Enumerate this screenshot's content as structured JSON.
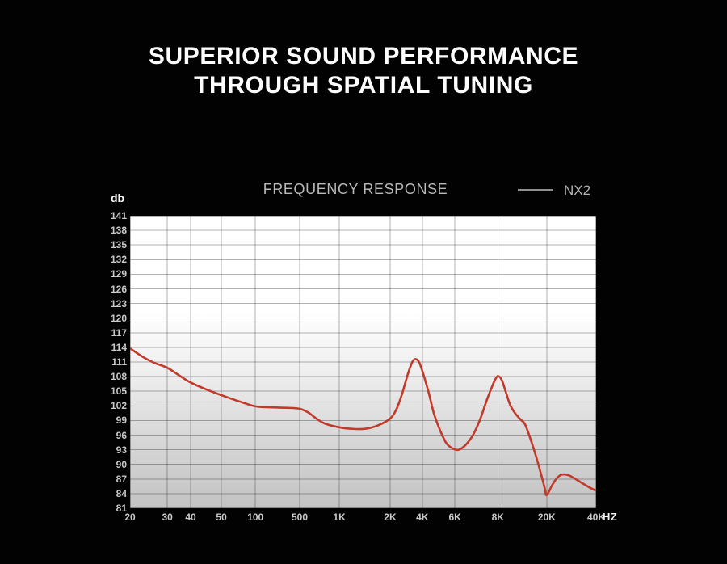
{
  "page": {
    "background": "#020202",
    "title_line1": "SUPERIOR SOUND PERFORMANCE",
    "title_line2": "THROUGH SPATIAL TUNING"
  },
  "chart": {
    "title": "FREQUENCY RESPONSE",
    "y_axis_unit": "db",
    "x_axis_unit": "HZ",
    "legend": {
      "label": "NX2",
      "swatch_color": "#909090"
    },
    "colors": {
      "curve": "#c13a2b",
      "grid": "rgba(0,0,0,0.30)",
      "plot_gradient_top": "#ffffff",
      "plot_gradient_bottom": "#c3c3c3",
      "tick_label": "#c9c9c9"
    }
  },
  "chart_data": {
    "type": "line",
    "title": "FREQUENCY RESPONSE",
    "series_name": "NX2",
    "legend_position": "top-right",
    "grid": true,
    "y_axis": {
      "label": "db",
      "min": 81,
      "max": 141,
      "step": 3,
      "tick_labels": [
        "141",
        "138",
        "135",
        "132",
        "129",
        "126",
        "123",
        "120",
        "117",
        "114",
        "111",
        "108",
        "105",
        "102",
        "99",
        "96",
        "93",
        "90",
        "87",
        "84",
        "81"
      ]
    },
    "x_axis": {
      "label": "HZ",
      "ticks": [
        {
          "label": "20",
          "f": 0.0
        },
        {
          "label": "30",
          "f": 0.08
        },
        {
          "label": "40",
          "f": 0.13
        },
        {
          "label": "50",
          "f": 0.196
        },
        {
          "label": "100",
          "f": 0.269
        },
        {
          "label": "500",
          "f": 0.364
        },
        {
          "label": "1K",
          "f": 0.449
        },
        {
          "label": "2K",
          "f": 0.558
        },
        {
          "label": "4K",
          "f": 0.627
        },
        {
          "label": "6K",
          "f": 0.697
        },
        {
          "label": "8K",
          "f": 0.789
        },
        {
          "label": "20K",
          "f": 0.894
        },
        {
          "label": "40K",
          "f": 1.0
        }
      ]
    },
    "points": [
      {
        "hz": 20,
        "db": 113.8,
        "f": 0.0
      },
      {
        "hz": 23,
        "db": 112.2,
        "f": 0.025
      },
      {
        "hz": 26,
        "db": 110.9,
        "f": 0.05
      },
      {
        "hz": 30,
        "db": 109.8,
        "f": 0.08
      },
      {
        "hz": 34,
        "db": 108.2,
        "f": 0.106
      },
      {
        "hz": 40,
        "db": 106.8,
        "f": 0.13
      },
      {
        "hz": 45,
        "db": 105.4,
        "f": 0.163
      },
      {
        "hz": 50,
        "db": 104.2,
        "f": 0.196
      },
      {
        "hz": 70,
        "db": 103.0,
        "f": 0.232
      },
      {
        "hz": 100,
        "db": 101.9,
        "f": 0.269
      },
      {
        "hz": 180,
        "db": 101.7,
        "f": 0.302
      },
      {
        "hz": 320,
        "db": 101.6,
        "f": 0.336
      },
      {
        "hz": 500,
        "db": 101.4,
        "f": 0.364
      },
      {
        "hz": 580,
        "db": 100.6,
        "f": 0.383
      },
      {
        "hz": 680,
        "db": 99.3,
        "f": 0.401
      },
      {
        "hz": 800,
        "db": 98.3,
        "f": 0.42
      },
      {
        "hz": 1000,
        "db": 97.6,
        "f": 0.449
      },
      {
        "hz": 1200,
        "db": 97.3,
        "f": 0.476
      },
      {
        "hz": 1450,
        "db": 97.3,
        "f": 0.504
      },
      {
        "hz": 1700,
        "db": 98.0,
        "f": 0.532
      },
      {
        "hz": 2000,
        "db": 99.4,
        "f": 0.558
      },
      {
        "hz": 2250,
        "db": 101.4,
        "f": 0.572
      },
      {
        "hz": 2500,
        "db": 104.6,
        "f": 0.584
      },
      {
        "hz": 2800,
        "db": 108.2,
        "f": 0.595
      },
      {
        "hz": 3100,
        "db": 110.9,
        "f": 0.605
      },
      {
        "hz": 3300,
        "db": 111.6,
        "f": 0.612
      },
      {
        "hz": 3550,
        "db": 111.0,
        "f": 0.62
      },
      {
        "hz": 4000,
        "db": 108.6,
        "f": 0.629
      },
      {
        "hz": 4300,
        "db": 104.6,
        "f": 0.641
      },
      {
        "hz": 4700,
        "db": 100.4,
        "f": 0.652
      },
      {
        "hz": 5100,
        "db": 96.8,
        "f": 0.666
      },
      {
        "hz": 5500,
        "db": 94.3,
        "f": 0.679
      },
      {
        "hz": 5900,
        "db": 93.2,
        "f": 0.693
      },
      {
        "hz": 6200,
        "db": 93.0,
        "f": 0.705
      },
      {
        "hz": 6600,
        "db": 93.9,
        "f": 0.719
      },
      {
        "hz": 7000,
        "db": 95.9,
        "f": 0.735
      },
      {
        "hz": 7300,
        "db": 99.2,
        "f": 0.751
      },
      {
        "hz": 7600,
        "db": 102.8,
        "f": 0.764
      },
      {
        "hz": 7800,
        "db": 105.8,
        "f": 0.776
      },
      {
        "hz": 7900,
        "db": 107.5,
        "f": 0.784
      },
      {
        "hz": 8000,
        "db": 108.1,
        "f": 0.79
      },
      {
        "hz": 8600,
        "db": 107.2,
        "f": 0.798
      },
      {
        "hz": 9300,
        "db": 104.6,
        "f": 0.807
      },
      {
        "hz": 10000,
        "db": 102.1,
        "f": 0.816
      },
      {
        "hz": 11000,
        "db": 100.5,
        "f": 0.826
      },
      {
        "hz": 12000,
        "db": 99.2,
        "f": 0.838
      },
      {
        "hz": 13300,
        "db": 98.3,
        "f": 0.847
      },
      {
        "hz": 14700,
        "db": 95.8,
        "f": 0.857
      },
      {
        "hz": 16500,
        "db": 92.3,
        "f": 0.869
      },
      {
        "hz": 18000,
        "db": 88.3,
        "f": 0.881
      },
      {
        "hz": 19300,
        "db": 85.0,
        "f": 0.89
      },
      {
        "hz": 20000,
        "db": 83.7,
        "f": 0.894
      },
      {
        "hz": 22000,
        "db": 85.8,
        "f": 0.906
      },
      {
        "hz": 23500,
        "db": 87.2,
        "f": 0.916
      },
      {
        "hz": 25000,
        "db": 87.9,
        "f": 0.926
      },
      {
        "hz": 27500,
        "db": 87.8,
        "f": 0.94
      },
      {
        "hz": 30000,
        "db": 87.1,
        "f": 0.954
      },
      {
        "hz": 33500,
        "db": 86.1,
        "f": 0.971
      },
      {
        "hz": 37000,
        "db": 85.2,
        "f": 0.987
      },
      {
        "hz": 40000,
        "db": 84.6,
        "f": 1.0
      }
    ]
  }
}
